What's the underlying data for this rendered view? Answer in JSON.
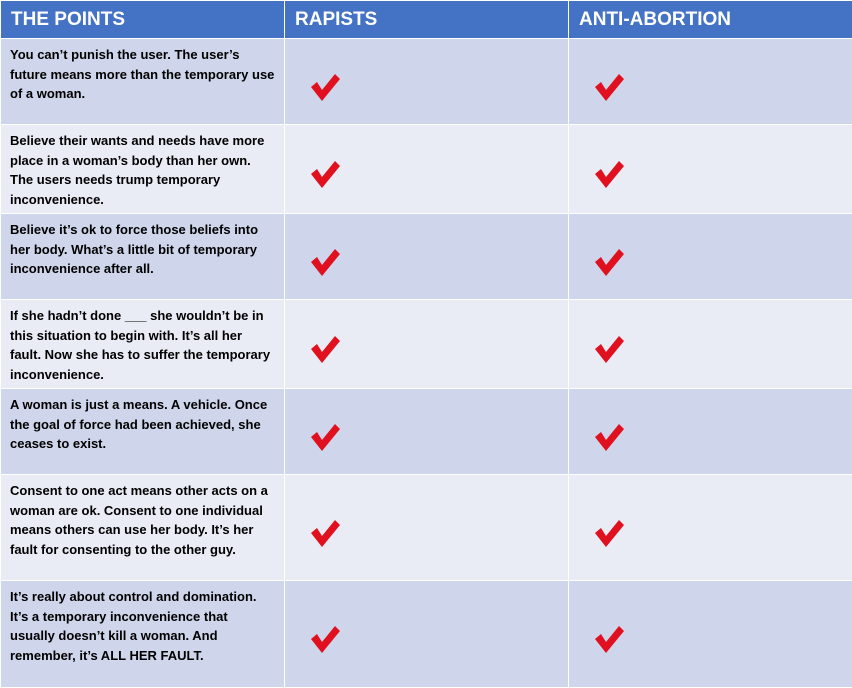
{
  "header": {
    "col_points": "THE POINTS",
    "col_rapists": "RAPISTS",
    "col_anti_abortion": "ANTI-ABORTION"
  },
  "colors": {
    "header_bg": "#4472c4",
    "row_odd": "#cfd5ea",
    "row_even": "#e9ebf5",
    "check": "#e0101e"
  },
  "rows": [
    {
      "point": "You can’t punish the user. The user’s future means more than the temporary use of a woman.",
      "rapists": "check-icon",
      "anti_abortion": "check-icon"
    },
    {
      "point": "Believe their wants and needs have more place in a woman’s body than her own. The users needs trump temporary inconvenience.",
      "rapists": "check-icon",
      "anti_abortion": "check-icon"
    },
    {
      "point": "Believe it’s ok to force those beliefs into her body. What’s a little bit of temporary inconvenience after all.",
      "rapists": "check-icon",
      "anti_abortion": "check-icon"
    },
    {
      "point": "If she hadn’t done ___ she wouldn’t be in this situation to begin with. It’s all her fault. Now she has to suffer the temporary inconvenience.",
      "rapists": "check-icon",
      "anti_abortion": "check-icon"
    },
    {
      "point": "A woman is just a means. A vehicle. Once the goal of force had been achieved, she ceases to exist.",
      "rapists": "check-icon",
      "anti_abortion": "check-icon"
    },
    {
      "point": "Consent to one act means other acts on a woman are ok. Consent to one individual means others can use her body. It’s her fault for consenting to the other guy.",
      "rapists": "check-icon",
      "anti_abortion": "check-icon"
    },
    {
      "point": "It’s really about control and domination. It’s a temporary inconvenience that usually doesn’t kill a woman.  And remember, it’s ALL HER FAULT.",
      "rapists": "check-icon",
      "anti_abortion": "check-icon"
    }
  ]
}
